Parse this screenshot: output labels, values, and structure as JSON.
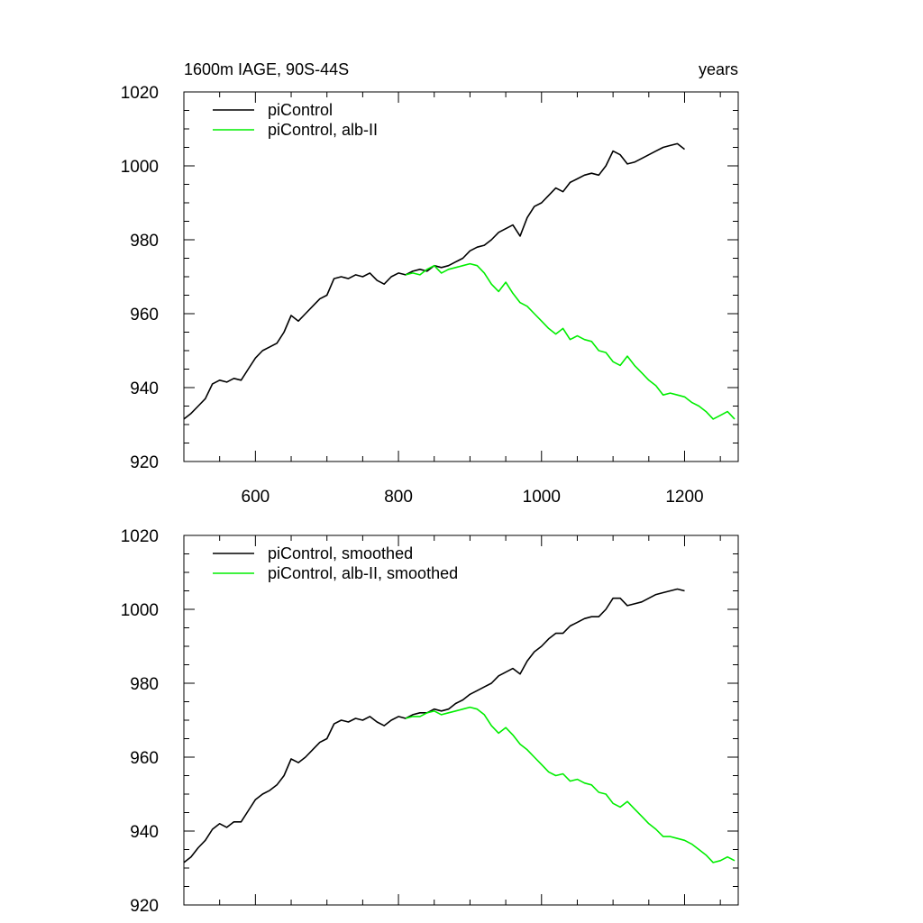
{
  "chart_data": [
    {
      "type": "line",
      "title_left": "1600m IAGE, 90S-44S",
      "title_right": "years",
      "xlim": [
        500,
        1275
      ],
      "ylim": [
        920,
        1020
      ],
      "x_ticks": [
        600,
        800,
        1000,
        1200
      ],
      "y_ticks": [
        920,
        940,
        960,
        980,
        1000,
        1020
      ],
      "show_x_tick_labels": true,
      "legend_position": "top-left",
      "series": [
        {
          "name": "piControl",
          "color": "#000000",
          "x": [
            500,
            510,
            520,
            530,
            540,
            550,
            560,
            570,
            580,
            590,
            600,
            610,
            620,
            630,
            640,
            650,
            660,
            670,
            680,
            690,
            700,
            710,
            720,
            730,
            740,
            750,
            760,
            770,
            780,
            790,
            800,
            810,
            820,
            830,
            840,
            850,
            860,
            870,
            880,
            890,
            900,
            910,
            920,
            930,
            940,
            950,
            960,
            970,
            980,
            990,
            1000,
            1010,
            1020,
            1030,
            1040,
            1050,
            1060,
            1070,
            1080,
            1090,
            1100,
            1110,
            1120,
            1130,
            1140,
            1150,
            1160,
            1170,
            1180,
            1190,
            1200
          ],
          "values": [
            931.5,
            933,
            935,
            937,
            941,
            942,
            941.5,
            942.5,
            942,
            945,
            948,
            950,
            951,
            952,
            955,
            959.5,
            958,
            960,
            962,
            964,
            965,
            969.5,
            970,
            969.5,
            970.5,
            970,
            971,
            969,
            968,
            970,
            971,
            970.5,
            971.5,
            972,
            971.5,
            973,
            972.5,
            973,
            974,
            975,
            977,
            978,
            978.5,
            980,
            982,
            983,
            984,
            981,
            986,
            989,
            990,
            992,
            994,
            993,
            995.5,
            996.5,
            997.5,
            998,
            997.5,
            1000,
            1004,
            1003,
            1000.5,
            1001,
            1002,
            1003,
            1004,
            1005,
            1005.5,
            1006,
            1004.5
          ]
        },
        {
          "name": "piControl, alb-II",
          "color": "#00ee00",
          "x": [
            810,
            820,
            830,
            840,
            850,
            860,
            870,
            880,
            890,
            900,
            910,
            920,
            930,
            940,
            950,
            960,
            970,
            980,
            990,
            1000,
            1010,
            1020,
            1030,
            1040,
            1050,
            1060,
            1070,
            1080,
            1090,
            1100,
            1110,
            1120,
            1130,
            1140,
            1150,
            1160,
            1170,
            1180,
            1190,
            1200,
            1210,
            1220,
            1230,
            1240,
            1250,
            1260,
            1270
          ],
          "values": [
            970.5,
            971,
            970.5,
            972,
            973,
            971,
            972,
            972.5,
            973,
            973.5,
            973,
            971,
            968,
            966,
            968.5,
            965.5,
            963,
            962,
            960,
            958,
            956,
            954.5,
            956,
            953,
            954,
            953,
            952.5,
            950,
            949.5,
            947,
            946,
            948.5,
            946,
            944,
            942,
            940.5,
            938,
            938.5,
            938,
            937.5,
            936,
            935,
            933.5,
            931.5,
            932.5,
            933.5,
            931.5
          ]
        }
      ]
    },
    {
      "type": "line",
      "xlim": [
        500,
        1275
      ],
      "ylim": [
        920,
        1020
      ],
      "x_ticks": [
        600,
        800,
        1000,
        1200
      ],
      "y_ticks": [
        920,
        940,
        960,
        980,
        1000,
        1020
      ],
      "show_x_tick_labels": false,
      "legend_position": "top-left",
      "series": [
        {
          "name": "piControl, smoothed",
          "color": "#000000",
          "x": [
            500,
            510,
            520,
            530,
            540,
            550,
            560,
            570,
            580,
            590,
            600,
            610,
            620,
            630,
            640,
            650,
            660,
            670,
            680,
            690,
            700,
            710,
            720,
            730,
            740,
            750,
            760,
            770,
            780,
            790,
            800,
            810,
            820,
            830,
            840,
            850,
            860,
            870,
            880,
            890,
            900,
            910,
            920,
            930,
            940,
            950,
            960,
            970,
            980,
            990,
            1000,
            1010,
            1020,
            1030,
            1040,
            1050,
            1060,
            1070,
            1080,
            1090,
            1100,
            1110,
            1120,
            1130,
            1140,
            1150,
            1160,
            1170,
            1180,
            1190,
            1200
          ],
          "values": [
            931.5,
            933,
            935.5,
            937.5,
            940.5,
            942,
            941,
            942.5,
            942.5,
            945.5,
            948.5,
            950,
            951,
            952.5,
            955,
            959.5,
            958.5,
            960,
            962,
            964,
            965,
            969,
            970,
            969.5,
            970.5,
            970,
            971,
            969.5,
            968.5,
            970,
            971,
            970.5,
            971.5,
            972,
            972,
            973,
            972.5,
            973,
            974.5,
            975.5,
            977,
            978,
            979,
            980,
            982,
            983,
            984,
            982.5,
            986,
            988.5,
            990,
            992,
            993.5,
            993.5,
            995.5,
            996.5,
            997.5,
            998,
            998,
            1000,
            1003,
            1003,
            1001,
            1001.5,
            1002,
            1003,
            1004,
            1004.5,
            1005,
            1005.5,
            1005
          ]
        },
        {
          "name": "piControl, alb-II, smoothed",
          "color": "#00ee00",
          "x": [
            810,
            820,
            830,
            840,
            850,
            860,
            870,
            880,
            890,
            900,
            910,
            920,
            930,
            940,
            950,
            960,
            970,
            980,
            990,
            1000,
            1010,
            1020,
            1030,
            1040,
            1050,
            1060,
            1070,
            1080,
            1090,
            1100,
            1110,
            1120,
            1130,
            1140,
            1150,
            1160,
            1170,
            1180,
            1190,
            1200,
            1210,
            1220,
            1230,
            1240,
            1250,
            1260,
            1270
          ],
          "values": [
            970.5,
            971,
            971,
            972,
            972.5,
            971.5,
            972,
            972.5,
            973,
            973.5,
            973,
            971.5,
            968.5,
            966.5,
            968,
            966,
            963.5,
            962,
            960,
            958,
            956,
            955,
            955.5,
            953.5,
            954,
            953,
            952.5,
            950.5,
            950,
            947.5,
            946.5,
            948,
            946,
            944,
            942,
            940.5,
            938.5,
            938.5,
            938,
            937.5,
            936.5,
            935,
            933.5,
            931.5,
            932,
            933,
            932
          ]
        }
      ]
    }
  ]
}
